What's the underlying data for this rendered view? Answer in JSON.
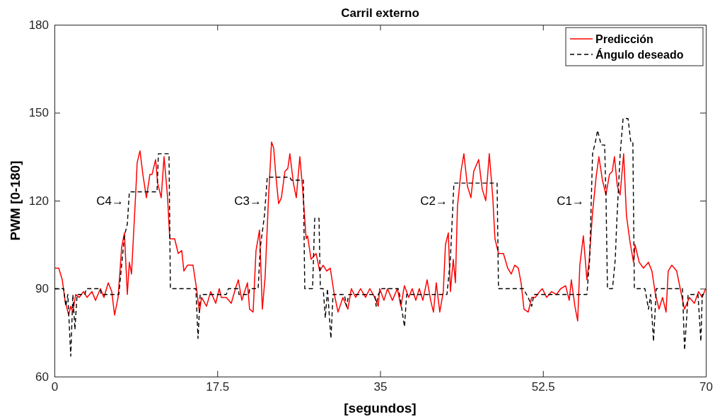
{
  "chart_data": {
    "type": "line",
    "title": "Carril externo",
    "xlabel": "[segundos]",
    "ylabel": "PWM [0-180]",
    "xlim": [
      0,
      70
    ],
    "xticks": [
      0,
      17.5,
      35,
      52.5,
      70
    ],
    "ylim": [
      60,
      180
    ],
    "yticks": [
      60,
      90,
      120,
      150,
      180
    ],
    "grid": false,
    "legend": "top right",
    "marker": "none",
    "series": [
      {
        "name": "Predicción",
        "color": "#ff0000",
        "line_style": "solid",
        "x": [
          0.08,
          0.46,
          0.84,
          1.14,
          1.52,
          1.75,
          1.98,
          2.28,
          2.66,
          3.12,
          3.5,
          4.03,
          4.41,
          4.94,
          5.32,
          5.78,
          6.16,
          6.46,
          6.84,
          7.22,
          7.52,
          7.83,
          8.05,
          8.28,
          8.74,
          8.89,
          9.19,
          9.5,
          9.88,
          10.26,
          10.49,
          10.87,
          11.09,
          11.47,
          11.78,
          12.16,
          12.39,
          12.92,
          13.3,
          13.68,
          13.91,
          14.29,
          14.89,
          15.27,
          15.58,
          15.81,
          16.34,
          16.79,
          17.33,
          17.71,
          17.93,
          18.47,
          19.0,
          19.45,
          19.76,
          20.14,
          20.74,
          20.97,
          21.35,
          21.66,
          22.04,
          22.34,
          22.64,
          23.02,
          23.33,
          23.56,
          23.78,
          24.09,
          24.39,
          24.77,
          25.08,
          25.3,
          25.68,
          25.99,
          26.37,
          26.67,
          27.05,
          27.2,
          27.58,
          28.12,
          28.5,
          28.88,
          29.26,
          29.64,
          30.02,
          30.47,
          31.0,
          31.53,
          31.91,
          32.37,
          32.9,
          33.43,
          33.89,
          34.42,
          34.8,
          34.95,
          35.41,
          35.79,
          36.32,
          36.85,
          37.23,
          37.61,
          38.07,
          38.45,
          38.83,
          39.21,
          39.59,
          40.05,
          40.43,
          40.73,
          41.03,
          41.41,
          41.79,
          42.02,
          42.33,
          42.55,
          42.86,
          43.09,
          43.31,
          43.69,
          44.0,
          44.38,
          44.76,
          45.06,
          45.59,
          45.97,
          46.35,
          46.73,
          47.11,
          47.34,
          47.72,
          48.25,
          48.71,
          49.09,
          49.47,
          49.85,
          50.15,
          50.46,
          50.91,
          51.29,
          51.67,
          52.13,
          52.43,
          52.89,
          53.42,
          53.95,
          54.41,
          54.94,
          55.32,
          55.55,
          55.93,
          56.23,
          56.46,
          56.84,
          57.22,
          57.45,
          57.83,
          58.21,
          58.51,
          58.89,
          59.27,
          59.65,
          59.95,
          60.18,
          60.49,
          60.79,
          61.17,
          61.47,
          61.85,
          62.23,
          62.39,
          62.84,
          63.3,
          63.83,
          64.21,
          64.59,
          64.97,
          65.35,
          65.73,
          65.96,
          66.34,
          66.87,
          67.25,
          67.71,
          68.24,
          68.77,
          69.22,
          69.6,
          69.98
        ],
        "values": [
          97,
          97,
          93,
          86,
          81,
          84,
          82,
          88,
          87,
          89,
          87,
          89,
          86,
          90,
          87,
          92,
          89,
          81,
          87,
          104,
          109,
          88,
          99,
          95,
          123,
          133,
          137,
          129,
          121,
          129,
          129,
          134,
          126,
          121,
          135,
          121,
          107,
          107,
          102,
          103,
          96,
          98,
          98,
          90,
          82,
          87,
          84,
          89,
          85,
          90,
          87,
          87,
          85,
          90,
          93,
          86,
          92,
          83,
          82,
          103,
          110,
          83,
          94,
          122,
          140,
          138,
          129,
          119,
          121,
          130,
          131,
          136,
          126,
          121,
          135,
          124,
          107,
          108,
          100,
          102,
          96,
          98,
          96,
          97,
          89,
          82,
          87,
          83,
          90,
          87,
          90,
          87,
          90,
          87,
          84,
          90,
          86,
          90,
          86,
          90,
          84,
          91,
          87,
          90,
          86,
          90,
          86,
          93,
          86,
          82,
          92,
          82,
          89,
          105,
          109,
          89,
          100,
          92,
          118,
          130,
          136,
          125,
          121,
          130,
          134,
          124,
          120,
          136,
          121,
          107,
          102,
          102,
          97,
          95,
          98,
          97,
          92,
          83,
          82,
          87,
          87,
          89,
          90,
          87,
          89,
          88,
          90,
          91,
          86,
          93,
          84,
          79,
          98,
          108,
          93,
          99,
          116,
          128,
          135,
          127,
          122,
          129,
          130,
          135,
          125,
          122,
          136,
          115,
          106,
          99,
          105,
          99,
          97,
          99,
          96,
          88,
          83,
          87,
          82,
          96,
          98,
          96,
          90,
          83,
          87,
          85,
          89,
          87,
          90
        ]
      },
      {
        "name": "Ángulo deseado",
        "color": "#000000",
        "line_style": "dashed",
        "x": [
          0,
          0.99,
          1.22,
          1.44,
          1.75,
          1.98,
          2.2,
          2.43,
          3.27,
          3.42,
          4.94,
          5.02,
          6.92,
          7.22,
          7.52,
          7.83,
          8.05,
          11.02,
          11.17,
          12.31,
          12.46,
          15.2,
          15.43,
          15.66,
          18.47,
          18.69,
          19.76,
          19.83,
          20.9,
          20.97,
          21.89,
          22.12,
          22.57,
          22.87,
          25.3,
          25.46,
          26.75,
          26.9,
          27.74,
          27.97,
          28.43,
          28.58,
          28.88,
          29.11,
          29.34,
          29.71,
          29.94,
          31.16,
          31.39,
          31.62,
          34.42,
          34.57,
          34.8,
          35.19,
          36.94,
          37.09,
          37.62,
          37.85,
          42.18,
          42.55,
          42.93,
          47.57,
          47.72,
          50.39,
          50.91,
          51.29,
          51.52,
          57.22,
          57.52,
          57.83,
          58.13,
          58.37,
          58.75,
          59.13,
          59.28,
          59.43,
          59.97,
          60.27,
          60.42,
          60.8,
          61.11,
          61.64,
          61.94,
          62.16,
          62.32,
          63.46,
          63.84,
          64.07,
          64.38,
          64.68,
          67.49,
          67.72,
          68.1,
          69.16,
          69.47,
          69.62,
          70
        ],
        "values": [
          90,
          90,
          84,
          88,
          67,
          88,
          76,
          88,
          88,
          90,
          90,
          88,
          88,
          98,
          108,
          112,
          123,
          123,
          136,
          136,
          90,
          90,
          73,
          88,
          88,
          90,
          90,
          88,
          88,
          90,
          90,
          104,
          115,
          128,
          128,
          127,
          127,
          90,
          90,
          114,
          114,
          90,
          90,
          80,
          90,
          73,
          88,
          88,
          84,
          88,
          88,
          84,
          88,
          90,
          90,
          88,
          77,
          88,
          88,
          100,
          126,
          126,
          90,
          90,
          87,
          84,
          88,
          88,
          100,
          136,
          140,
          144,
          139,
          139,
          120,
          90,
          90,
          100,
          112,
          136,
          148,
          148,
          140,
          140,
          90,
          90,
          83,
          88,
          72,
          90,
          90,
          69,
          88,
          88,
          72,
          88,
          88
        ]
      }
    ],
    "annotations": [
      "C4→",
      "C3→",
      "C2→",
      "C1→"
    ]
  }
}
